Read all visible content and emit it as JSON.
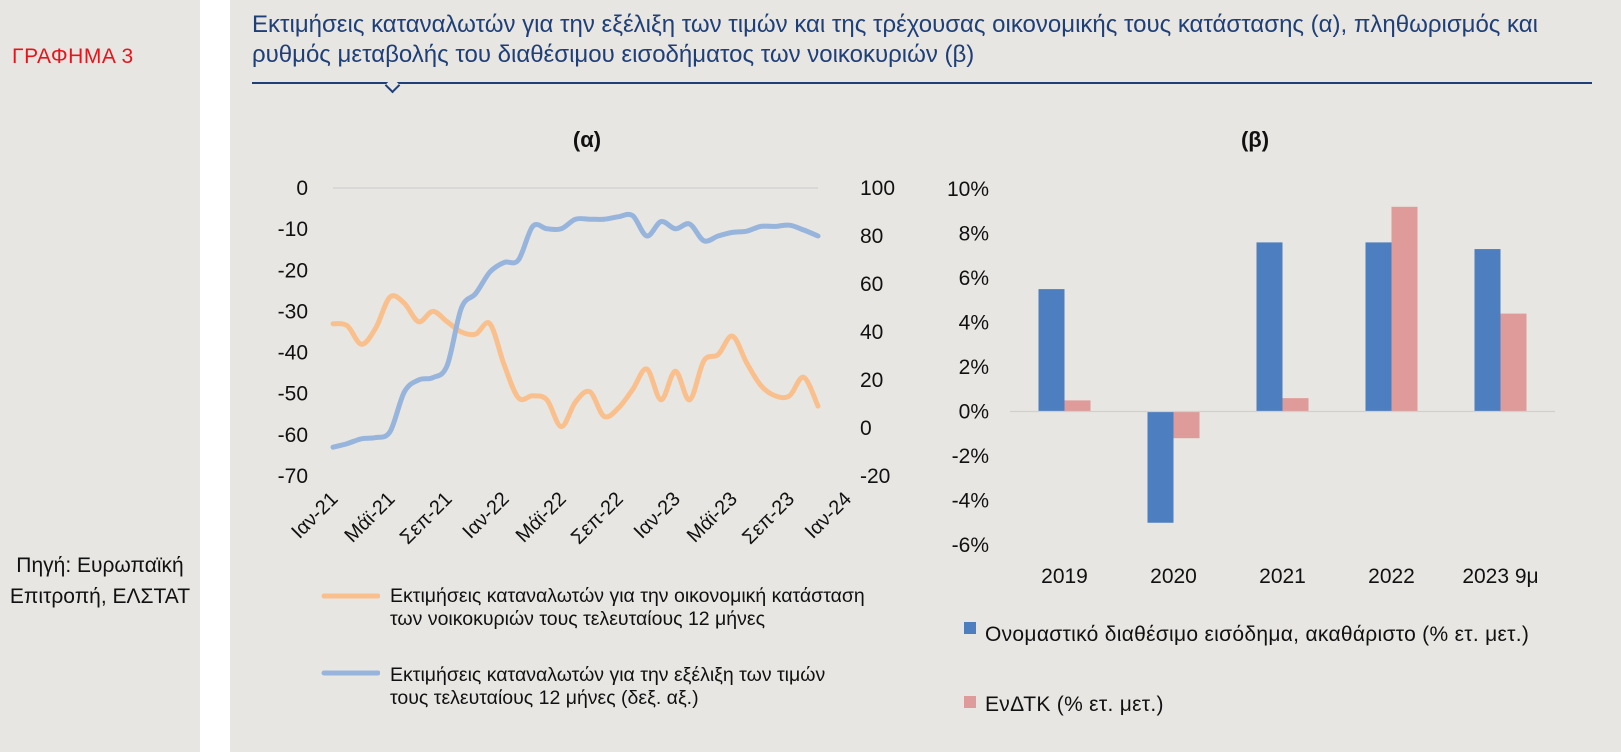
{
  "figure_label": "ΓΡΑΦΗΜΑ 3",
  "title": "Εκτιμήσεις καταναλωτών για την εξέλιξη των τιμών και της τρέχουσας οικονομικής τους κατάστασης (α), πληθωρισμός και ρυθμός μεταβολής του διαθέσιμου εισοδήματος των νοικοκυριών (β)",
  "source": "Πηγή: Ευρωπαϊκή Επιτροπή, ΕΛΣΤΑΤ",
  "colors": {
    "title": "#1f3f78",
    "label": "#e8141b",
    "orange": "#f9c08e",
    "blue_line": "#97b4dc",
    "blue_bar": "#4d7ebf",
    "pink_bar": "#de9b9a"
  },
  "chart_data": [
    {
      "type": "line",
      "title": "(α)",
      "x_tick_labels": [
        "Ιαν-21",
        "Μάϊ-21",
        "Σεπ-21",
        "Ιαν-22",
        "Μάϊ-22",
        "Σεπ-22",
        "Ιαν-23",
        "Μάϊ-23",
        "Σεπ-23",
        "Ιαν-24"
      ],
      "y_left": {
        "range": [
          -70,
          0
        ],
        "ticks": [
          0,
          -10,
          -20,
          -30,
          -40,
          -50,
          -60,
          -70
        ]
      },
      "y_right": {
        "range": [
          -20,
          100
        ],
        "ticks": [
          100,
          80,
          60,
          40,
          20,
          0,
          -20
        ]
      },
      "grid": false,
      "series": [
        {
          "name": "Εκτιμήσεις καταναλωτών για την οικονομική κατάσταση των νοικοκυριών τους τελευταίους 12 μήνες",
          "axis": "left",
          "color": "#f9c08e",
          "values": [
            -33,
            -33.5,
            -38,
            -34,
            -26.5,
            -28,
            -32.5,
            -30,
            -32.5,
            -35,
            -35.5,
            -33,
            -43,
            -51,
            -50.5,
            -51.5,
            -58,
            -52,
            -49.5,
            -55.5,
            -53.5,
            -49,
            -44,
            -51.5,
            -44.5,
            -51.5,
            -42,
            -40.5,
            -36,
            -42.5,
            -48,
            -50.5,
            -50.5,
            -46,
            -53
          ]
        },
        {
          "name": "Εκτιμήσεις καταναλωτών για την εξέλιξη των τιμών τους τελευταίους 12 μήνες (δεξ. αξ.)",
          "axis": "right",
          "color": "#97b4dc",
          "values": [
            -8,
            -6.5,
            -4.5,
            -4,
            -1.5,
            15,
            20,
            21,
            26,
            50,
            56,
            65,
            69,
            70,
            84,
            83,
            83,
            87,
            87,
            87,
            88,
            88.5,
            80,
            86,
            83,
            85,
            78,
            80,
            81.5,
            82,
            84,
            84,
            84.5,
            82.5,
            80
          ]
        }
      ]
    },
    {
      "type": "bar",
      "title": "(β)",
      "categories": [
        "2019",
        "2020",
        "2021",
        "2022",
        "2023 9μ"
      ],
      "ylim": [
        -0.06,
        0.1
      ],
      "y_ticks": [
        "10%",
        "8%",
        "6%",
        "4%",
        "2%",
        "0%",
        "-2%",
        "-4%",
        "-6%"
      ],
      "series": [
        {
          "name": "Ονομαστικό διαθέσιμο εισόδημα, ακαθάριστο (% ετ. μετ.)",
          "color": "#4d7ebf",
          "values": [
            5.5,
            -5.0,
            7.6,
            7.6,
            7.3
          ]
        },
        {
          "name": "ΕνΔΤΚ (% ετ. μετ.)",
          "color": "#de9b9a",
          "values": [
            0.5,
            -1.2,
            0.6,
            9.2,
            4.4
          ]
        }
      ]
    }
  ]
}
